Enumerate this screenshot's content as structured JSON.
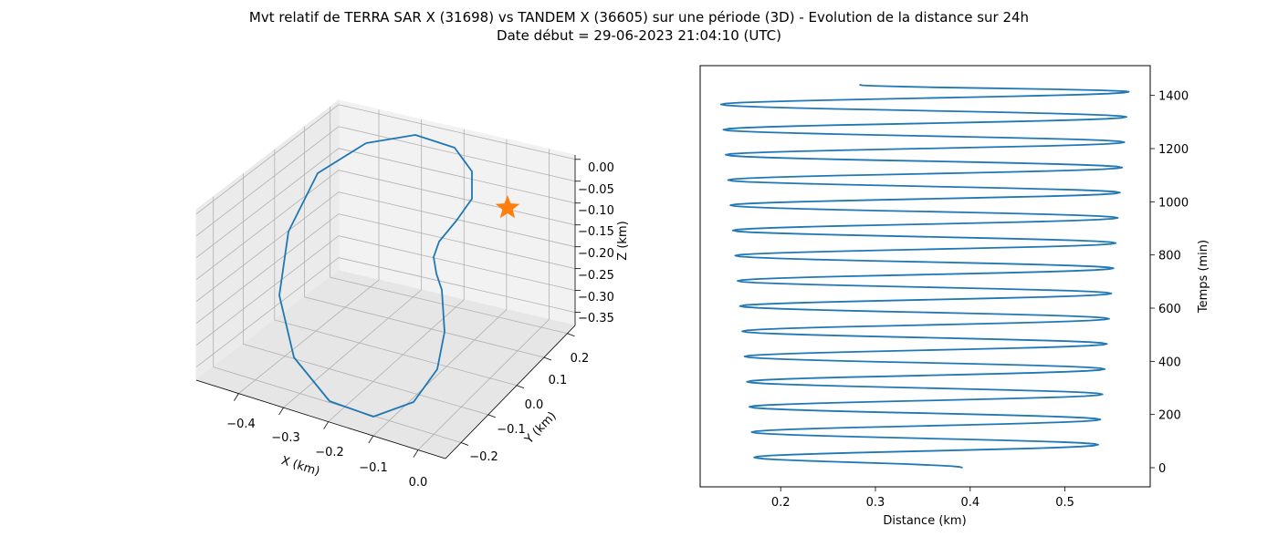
{
  "title": {
    "line1": "Mvt relatif de TERRA SAR X (31698) vs TANDEM X (36605) sur une période (3D) - Evolution de la distance sur 24h",
    "line2": "Date début = 29-06-2023 21:04:10 (UTC)"
  },
  "colors": {
    "series": "#1f77b4",
    "star": "#ff7f0e",
    "grid": "#b0b0b0",
    "pane": "#f2f2f2"
  },
  "chart_data": [
    {
      "type": "line",
      "projection": "3d",
      "xlabel": "X (km)",
      "ylabel": "Y (km)",
      "zlabel": "Z (km)",
      "x_ticks": [
        "−0.4",
        "−0.3",
        "−0.2",
        "−0.1",
        "0.0"
      ],
      "y_ticks": [
        "−0.2",
        "−0.1",
        "0.0",
        "0.1",
        "0.2"
      ],
      "z_ticks": [
        "0.00",
        "−0.05",
        "−0.10",
        "−0.15",
        "−0.20",
        "−0.25",
        "−0.30",
        "−0.35"
      ],
      "xlim": [
        -0.48,
        0.02
      ],
      "ylim": [
        -0.25,
        0.25
      ],
      "zlim": [
        -0.38,
        0.01
      ],
      "grid": true,
      "series": [
        {
          "x": [
            -0.2,
            -0.1,
            -0.02,
            0.0,
            -0.02,
            -0.08,
            -0.12,
            -0.12,
            -0.1,
            -0.08,
            -0.07,
            -0.08,
            -0.13,
            -0.2,
            -0.28,
            -0.34,
            -0.38,
            -0.4,
            -0.4,
            -0.38,
            -0.32,
            -0.26
          ],
          "y": [
            0.17,
            0.14,
            0.07,
            -0.01,
            -0.04,
            -0.06,
            -0.05,
            -0.07,
            -0.09,
            -0.11,
            -0.13,
            -0.14,
            -0.14,
            -0.12,
            -0.08,
            -0.03,
            0.04,
            0.1,
            0.15,
            0.19,
            0.2,
            0.19
          ],
          "z": [
            -0.01,
            -0.02,
            -0.05,
            -0.09,
            -0.13,
            -0.17,
            -0.2,
            -0.23,
            -0.26,
            -0.29,
            -0.32,
            -0.35,
            -0.36,
            -0.36,
            -0.34,
            -0.3,
            -0.25,
            -0.19,
            -0.14,
            -0.09,
            -0.05,
            -0.02
          ]
        }
      ],
      "marker": {
        "shape": "star",
        "x": 0.0,
        "y": 0.0,
        "z": 0.0
      }
    },
    {
      "type": "line",
      "xlabel": "Distance (km)",
      "ylabel": "Temps (min)",
      "x_ticks": [
        0.2,
        0.3,
        0.4,
        0.5
      ],
      "y_ticks": [
        0,
        200,
        400,
        600,
        800,
        1000,
        1200,
        1400
      ],
      "xlim": [
        0.115,
        0.59
      ],
      "ylim": [
        -72,
        1512
      ],
      "yaxis_position": "right",
      "grid": false,
      "series": [
        {
          "period_min": 94.8,
          "start": {
            "t": 0,
            "d": 0.392
          },
          "end": {
            "t": 1440,
            "d": 0.283
          },
          "min_distance_start": 0.173,
          "min_distance_end": 0.135,
          "max_distance_start": 0.533,
          "max_distance_end": 0.568,
          "first_min_t": 39,
          "first_max_t": 86
        }
      ]
    }
  ]
}
